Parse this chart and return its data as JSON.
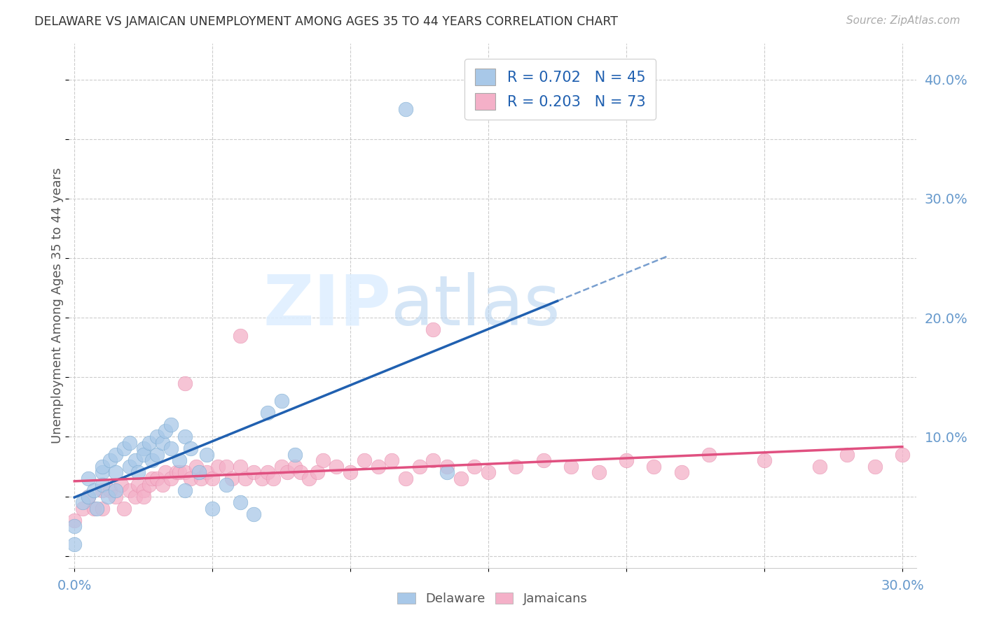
{
  "title": "DELAWARE VS JAMAICAN UNEMPLOYMENT AMONG AGES 35 TO 44 YEARS CORRELATION CHART",
  "source": "Source: ZipAtlas.com",
  "ylabel": "Unemployment Among Ages 35 to 44 years",
  "xlim": [
    -0.002,
    0.305
  ],
  "ylim": [
    -0.01,
    0.43
  ],
  "xticks": [
    0.0,
    0.05,
    0.1,
    0.15,
    0.2,
    0.25,
    0.3
  ],
  "xticklabels": [
    "0.0%",
    "",
    "",
    "",
    "",
    "",
    "30.0%"
  ],
  "yticks": [
    0.0,
    0.1,
    0.2,
    0.3,
    0.4
  ],
  "yticklabels": [
    "",
    "10.0%",
    "20.0%",
    "30.0%",
    "40.0%"
  ],
  "delaware_color": "#a8c8e8",
  "jamaican_color": "#f4b0c8",
  "delaware_edge_color": "#7aaad0",
  "jamaican_edge_color": "#e890b0",
  "delaware_line_color": "#2060b0",
  "jamaican_line_color": "#e05080",
  "tick_color": "#6699cc",
  "R_delaware": 0.702,
  "N_delaware": 45,
  "R_jamaican": 0.203,
  "N_jamaican": 73,
  "watermark_zip": "ZIP",
  "watermark_atlas": "atlas",
  "delaware_x": [
    0.0,
    0.0,
    0.003,
    0.005,
    0.005,
    0.007,
    0.008,
    0.01,
    0.01,
    0.01,
    0.012,
    0.013,
    0.015,
    0.015,
    0.015,
    0.018,
    0.02,
    0.02,
    0.022,
    0.023,
    0.025,
    0.025,
    0.027,
    0.028,
    0.03,
    0.03,
    0.032,
    0.033,
    0.035,
    0.035,
    0.038,
    0.04,
    0.04,
    0.042,
    0.045,
    0.048,
    0.05,
    0.055,
    0.06,
    0.065,
    0.07,
    0.075,
    0.08,
    0.12,
    0.135
  ],
  "delaware_y": [
    0.01,
    0.025,
    0.045,
    0.05,
    0.065,
    0.055,
    0.04,
    0.07,
    0.06,
    0.075,
    0.05,
    0.08,
    0.07,
    0.085,
    0.055,
    0.09,
    0.075,
    0.095,
    0.08,
    0.07,
    0.09,
    0.085,
    0.095,
    0.08,
    0.1,
    0.085,
    0.095,
    0.105,
    0.09,
    0.11,
    0.08,
    0.1,
    0.055,
    0.09,
    0.07,
    0.085,
    0.04,
    0.06,
    0.045,
    0.035,
    0.12,
    0.13,
    0.085,
    0.375,
    0.07
  ],
  "jamaican_x": [
    0.0,
    0.003,
    0.005,
    0.007,
    0.01,
    0.01,
    0.013,
    0.015,
    0.017,
    0.018,
    0.02,
    0.022,
    0.023,
    0.025,
    0.025,
    0.027,
    0.028,
    0.03,
    0.032,
    0.033,
    0.035,
    0.037,
    0.038,
    0.04,
    0.042,
    0.044,
    0.046,
    0.048,
    0.05,
    0.052,
    0.055,
    0.057,
    0.06,
    0.062,
    0.065,
    0.068,
    0.07,
    0.072,
    0.075,
    0.077,
    0.08,
    0.082,
    0.085,
    0.088,
    0.09,
    0.095,
    0.1,
    0.105,
    0.11,
    0.115,
    0.12,
    0.125,
    0.13,
    0.135,
    0.14,
    0.145,
    0.15,
    0.16,
    0.17,
    0.18,
    0.19,
    0.2,
    0.21,
    0.22,
    0.23,
    0.25,
    0.27,
    0.28,
    0.29,
    0.3,
    0.04,
    0.06,
    0.13
  ],
  "jamaican_y": [
    0.03,
    0.04,
    0.05,
    0.04,
    0.055,
    0.04,
    0.055,
    0.05,
    0.06,
    0.04,
    0.055,
    0.05,
    0.06,
    0.055,
    0.05,
    0.06,
    0.065,
    0.065,
    0.06,
    0.07,
    0.065,
    0.07,
    0.07,
    0.07,
    0.065,
    0.075,
    0.065,
    0.07,
    0.065,
    0.075,
    0.075,
    0.065,
    0.075,
    0.065,
    0.07,
    0.065,
    0.07,
    0.065,
    0.075,
    0.07,
    0.075,
    0.07,
    0.065,
    0.07,
    0.08,
    0.075,
    0.07,
    0.08,
    0.075,
    0.08,
    0.065,
    0.075,
    0.08,
    0.075,
    0.065,
    0.075,
    0.07,
    0.075,
    0.08,
    0.075,
    0.07,
    0.08,
    0.075,
    0.07,
    0.085,
    0.08,
    0.075,
    0.085,
    0.075,
    0.085,
    0.145,
    0.185,
    0.19
  ]
}
